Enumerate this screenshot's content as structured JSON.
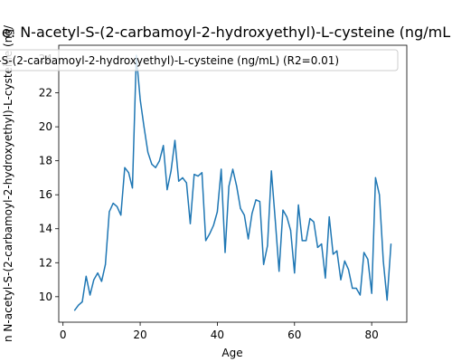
{
  "chart_data": {
    "type": "line",
    "title": "e: N-acetyl-S-(2-carbamoyl-2-hydroxyethyl)-L-cysteine (ng/mL",
    "xlabel": "Age",
    "ylabel": "n N-acetyl-S-(2-carbamoyl-2-hydroxyethyl)-L-cysteine (ng/",
    "legend_label": "l-S-(2-carbamoyl-2-hydroxyethyl)-L-cysteine (ng/mL) (R2=0.01)",
    "legend_position": "top",
    "grid": false,
    "line_color": "#1f77b4",
    "xlim": [
      -1.1,
      89.1
    ],
    "ylim": [
      8.5,
      24.8
    ],
    "xticks": [
      0,
      20,
      40,
      60,
      80
    ],
    "yticks": [
      10,
      12,
      14,
      16,
      18,
      20,
      22,
      24
    ],
    "x": [
      3,
      4,
      5,
      6,
      7,
      8,
      9,
      10,
      11,
      12,
      13,
      14,
      15,
      16,
      17,
      18,
      19,
      20,
      21,
      22,
      23,
      24,
      25,
      26,
      27,
      28,
      29,
      30,
      31,
      32,
      33,
      34,
      35,
      36,
      37,
      38,
      39,
      40,
      41,
      42,
      43,
      44,
      45,
      46,
      47,
      48,
      49,
      50,
      51,
      52,
      53,
      54,
      55,
      56,
      57,
      58,
      59,
      60,
      61,
      62,
      63,
      64,
      65,
      66,
      67,
      68,
      69,
      70,
      71,
      72,
      73,
      74,
      75,
      76,
      77,
      78,
      79,
      80,
      81,
      82,
      83,
      84,
      85
    ],
    "y": [
      9.2,
      9.5,
      9.7,
      11.2,
      10.1,
      11.0,
      11.4,
      10.9,
      11.9,
      15.0,
      15.5,
      15.3,
      14.8,
      17.6,
      17.3,
      16.4,
      24.2,
      21.6,
      20.0,
      18.5,
      17.8,
      17.6,
      18.0,
      18.9,
      16.3,
      17.4,
      19.2,
      16.8,
      17.0,
      16.7,
      14.3,
      17.2,
      17.1,
      17.3,
      13.3,
      13.7,
      14.2,
      15.0,
      17.5,
      12.6,
      16.5,
      17.5,
      16.5,
      15.2,
      14.8,
      13.4,
      14.9,
      15.7,
      15.6,
      11.9,
      13.0,
      17.4,
      14.5,
      11.5,
      15.1,
      14.7,
      13.9,
      11.4,
      15.4,
      13.3,
      13.3,
      14.6,
      14.4,
      12.9,
      13.1,
      11.1,
      14.7,
      12.5,
      12.7,
      11.0,
      12.1,
      11.6,
      10.5,
      10.5,
      10.1,
      12.6,
      12.2,
      10.2,
      17.0,
      16.0,
      12.1,
      9.8,
      13.1
    ]
  }
}
